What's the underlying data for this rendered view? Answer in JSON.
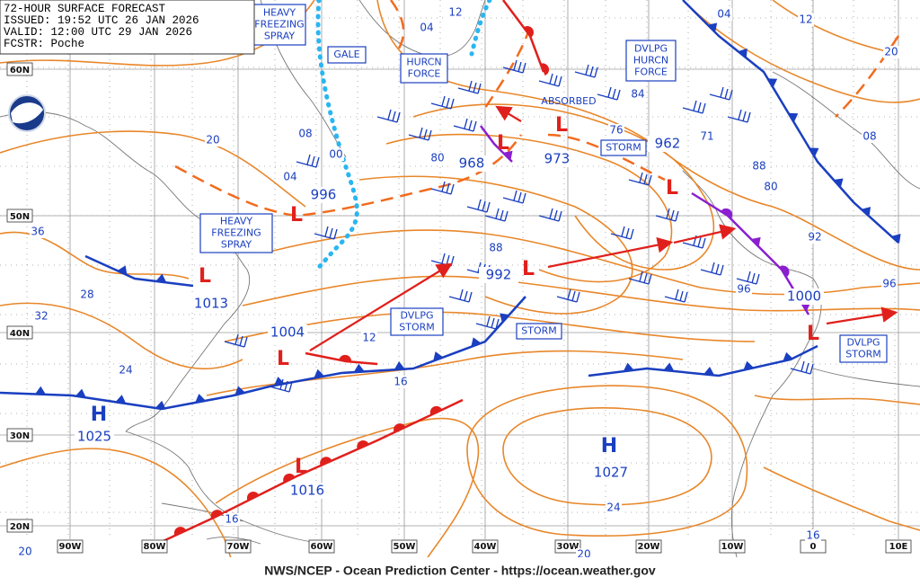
{
  "header": {
    "lines": [
      "72-HOUR SURFACE FORECAST",
      "ISSUED: 19:52 UTC 26 JAN 2026",
      "VALID: 12:00 UTC 29 JAN 2026",
      "FCSTR: Poche"
    ]
  },
  "footer": "NWS/NCEP - Ocean Prediction Center - https://ocean.weather.gov",
  "latitude_labels": [
    "60N",
    "50N",
    "40N",
    "30N",
    "20N"
  ],
  "longitude_labels": [
    "90W",
    "80W",
    "70W",
    "60W",
    "50W",
    "40W",
    "30W",
    "20W",
    "10W",
    "0",
    "10E"
  ],
  "warnings": [
    {
      "lines": [
        "HEAVY",
        "FREEZING",
        "SPRAY"
      ]
    },
    {
      "lines": [
        "GALE"
      ]
    },
    {
      "lines": [
        "HURCN",
        "FORCE"
      ]
    },
    {
      "lines": [
        "DVLPG",
        "HURCN",
        "FORCE"
      ]
    },
    {
      "lines": [
        "ABSORBED"
      ]
    },
    {
      "lines": [
        "STORM"
      ]
    },
    {
      "lines": [
        "HEAVY",
        "FREEZING",
        "SPRAY"
      ]
    },
    {
      "lines": [
        "DVLPG",
        "STORM"
      ]
    },
    {
      "lines": [
        "STORM"
      ]
    },
    {
      "lines": [
        "DVLPG",
        "STORM"
      ]
    }
  ],
  "pressure_centers": [
    {
      "symbol": "L",
      "value": "1013",
      "color": "#e0201c"
    },
    {
      "symbol": "L",
      "value": "1004",
      "color": "#e0201c"
    },
    {
      "symbol": "L",
      "value": "996",
      "color": "#e0201c"
    },
    {
      "symbol": "L",
      "value": "968",
      "color": "#e0201c"
    },
    {
      "symbol": "L",
      "value": "973",
      "color": "#e0201c"
    },
    {
      "symbol": "L",
      "value": "962",
      "color": "#e0201c"
    },
    {
      "symbol": "L",
      "value": "992",
      "color": "#e0201c"
    },
    {
      "symbol": "L",
      "value": "1000",
      "color": "#e0201c"
    },
    {
      "symbol": "L",
      "value": "1016",
      "color": "#e0201c"
    },
    {
      "symbol": "H",
      "value": "1025",
      "color": "#1a3fc0"
    },
    {
      "symbol": "H",
      "value": "1027",
      "color": "#1a3fc0"
    }
  ],
  "isobar_labels": [
    "12",
    "04",
    "04",
    "12",
    "20",
    "84",
    "76",
    "08",
    "20",
    "00",
    "04",
    "08",
    "88",
    "36",
    "92",
    "96",
    "96",
    "28",
    "32",
    "12",
    "16",
    "24",
    "24",
    "16",
    "20",
    "20",
    "16",
    "71",
    "80",
    "80",
    "88"
  ]
}
